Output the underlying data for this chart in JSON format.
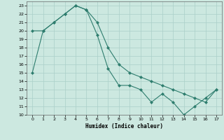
{
  "xlabel": "Humidex (Indice chaleur)",
  "line1_x": [
    0,
    1,
    2,
    3,
    4,
    5,
    6,
    7,
    8,
    9,
    10,
    11,
    12,
    13,
    14,
    15,
    16,
    17
  ],
  "line1_y": [
    15,
    20,
    21,
    22,
    23,
    22.5,
    19.5,
    15.5,
    13.5,
    13.5,
    13,
    11.5,
    12.5,
    11.5,
    10,
    11,
    12,
    13
  ],
  "line2_x": [
    0,
    1,
    2,
    3,
    4,
    5,
    6,
    7,
    8,
    9,
    10,
    11,
    12,
    13,
    14,
    15,
    16,
    17
  ],
  "line2_y": [
    20,
    20,
    21,
    22,
    23,
    22.5,
    21,
    18,
    16,
    15,
    14.5,
    14,
    13.5,
    13,
    12.5,
    12,
    11.5,
    13
  ],
  "line_color": "#2e7d6e",
  "bg_color": "#cce8e0",
  "grid_major_color": "#aacfc8",
  "grid_minor_color": "#bbdbd5",
  "ylim": [
    10,
    23.5
  ],
  "xlim": [
    -0.5,
    17.5
  ],
  "yticks": [
    10,
    11,
    12,
    13,
    14,
    15,
    16,
    17,
    18,
    19,
    20,
    21,
    22,
    23
  ],
  "xticks": [
    0,
    1,
    2,
    3,
    4,
    5,
    6,
    7,
    8,
    9,
    10,
    11,
    12,
    13,
    14,
    15,
    16,
    17
  ]
}
